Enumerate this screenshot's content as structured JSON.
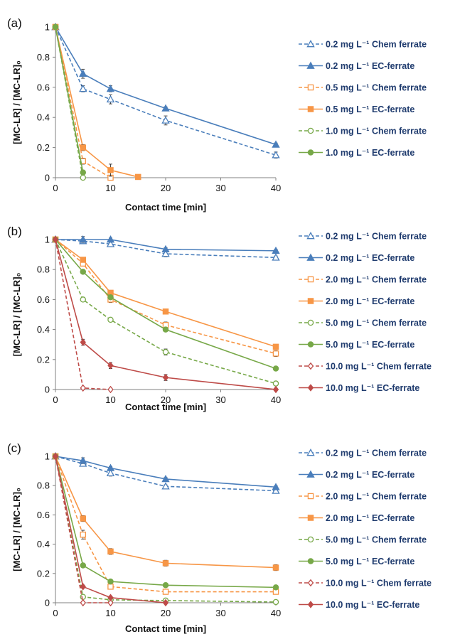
{
  "colors": {
    "blue": "#4a7ebb",
    "orange": "#f79646",
    "green": "#77a848",
    "red": "#be4b48",
    "axis": "#808080",
    "legend_text": "#1f3b6e"
  },
  "chart_data": [
    {
      "panel_label": "(a)",
      "type": "line",
      "xlabel": "Contact time [min]",
      "ylabel": "[MC-LR] / [MC-LR]₀",
      "xlim": [
        0,
        40
      ],
      "ylim": [
        0,
        1
      ],
      "xticks": [
        0,
        10,
        20,
        30,
        40
      ],
      "yticks": [
        0,
        0.2,
        0.4,
        0.6,
        0.8,
        1
      ],
      "ytick_labels": [
        "0",
        "0.2",
        "0.4",
        "0.6",
        "0.8",
        "1"
      ],
      "grid": false,
      "legend_position": "right",
      "series": [
        {
          "name": "0.2 mg L⁻¹ Chem ferrate",
          "color_key": "blue",
          "dash": true,
          "marker": "triangle-open",
          "x": [
            0,
            5,
            10,
            20,
            40
          ],
          "y": [
            1.0,
            0.59,
            0.52,
            0.38,
            0.15
          ],
          "err": [
            0,
            0.02,
            0.03,
            0.03,
            0.02
          ]
        },
        {
          "name": "0.2 mg L⁻¹ EC-ferrate",
          "color_key": "blue",
          "dash": false,
          "marker": "triangle-filled",
          "x": [
            0,
            5,
            10,
            20,
            40
          ],
          "y": [
            1.0,
            0.69,
            0.59,
            0.46,
            0.22
          ],
          "err": [
            0,
            0.03,
            0.02,
            0.01,
            0.01
          ]
        },
        {
          "name": "0.5 mg L⁻¹ Chem ferrate",
          "color_key": "orange",
          "dash": true,
          "marker": "square-open",
          "x": [
            0,
            5,
            10
          ],
          "y": [
            1.0,
            0.11,
            0.0
          ],
          "err": [
            0,
            0.02,
            0
          ]
        },
        {
          "name": "0.5 mg L⁻¹ EC-ferrate",
          "color_key": "orange",
          "dash": false,
          "marker": "square-filled",
          "x": [
            0,
            5,
            10,
            15
          ],
          "y": [
            1.0,
            0.2,
            0.05,
            0.005
          ],
          "err": [
            0,
            0.02,
            0.04,
            0
          ]
        },
        {
          "name": "1.0 mg L⁻¹ Chem ferrate",
          "color_key": "green",
          "dash": true,
          "marker": "circle-open",
          "x": [
            0,
            5
          ],
          "y": [
            1.0,
            0.0
          ],
          "err": [
            0,
            0
          ]
        },
        {
          "name": "1.0 mg L⁻¹ EC-ferrate",
          "color_key": "green",
          "dash": false,
          "marker": "circle-filled",
          "x": [
            0,
            5
          ],
          "y": [
            1.0,
            0.035
          ],
          "err": [
            0,
            0.01
          ]
        }
      ]
    },
    {
      "panel_label": "(b)",
      "type": "line",
      "xlabel": "Contact time [min]",
      "ylabel": "[MC-LR] / [MC-LR]₀",
      "xlim": [
        0,
        40
      ],
      "ylim": [
        0,
        1
      ],
      "xticks": [
        0,
        10,
        20,
        30,
        40
      ],
      "yticks": [
        0,
        0.2,
        0.4,
        0.6,
        0.8,
        1
      ],
      "ytick_labels": [
        "0",
        "0.2",
        "0.4",
        "0.6",
        "0.8",
        "1"
      ],
      "grid": false,
      "legend_position": "right",
      "series": [
        {
          "name": "0.2 mg L⁻¹ Chem ferrate",
          "color_key": "blue",
          "dash": true,
          "marker": "triangle-open",
          "x": [
            0,
            5,
            10,
            20,
            40
          ],
          "y": [
            1.0,
            0.99,
            0.97,
            0.905,
            0.88
          ],
          "err": [
            0,
            0.01,
            0.01,
            0.02,
            0.01
          ]
        },
        {
          "name": "0.2 mg L⁻¹ EC-ferrate",
          "color_key": "blue",
          "dash": false,
          "marker": "triangle-filled",
          "x": [
            0,
            5,
            10,
            20,
            40
          ],
          "y": [
            1.0,
            1.0,
            1.0,
            0.935,
            0.925
          ],
          "err": [
            0,
            0.02,
            0.01,
            0.01,
            0.01
          ]
        },
        {
          "name": "2.0 mg L⁻¹ Chem ferrate",
          "color_key": "orange",
          "dash": true,
          "marker": "square-open",
          "x": [
            0,
            5,
            10,
            20,
            40
          ],
          "y": [
            1.0,
            0.84,
            0.6,
            0.43,
            0.24
          ],
          "err": [
            0,
            0.01,
            0.02,
            0.02,
            0.02
          ]
        },
        {
          "name": "2.0 mg L⁻¹ EC-ferrate",
          "color_key": "orange",
          "dash": false,
          "marker": "square-filled",
          "x": [
            0,
            5,
            10,
            20,
            40
          ],
          "y": [
            1.0,
            0.865,
            0.645,
            0.52,
            0.285
          ],
          "err": [
            0,
            0.01,
            0.01,
            0.01,
            0.01
          ]
        },
        {
          "name": "5.0 mg L⁻¹ Chem ferrate",
          "color_key": "green",
          "dash": true,
          "marker": "circle-open",
          "x": [
            0,
            5,
            10,
            20,
            40
          ],
          "y": [
            1.0,
            0.6,
            0.465,
            0.25,
            0.04
          ],
          "err": [
            0,
            0.01,
            0.01,
            0.02,
            0.01
          ]
        },
        {
          "name": "5.0 mg L⁻¹ EC-ferrate",
          "color_key": "green",
          "dash": false,
          "marker": "circle-filled",
          "x": [
            0,
            5,
            10,
            20,
            40
          ],
          "y": [
            1.0,
            0.785,
            0.615,
            0.4,
            0.14
          ],
          "err": [
            0,
            0.01,
            0.01,
            0.01,
            0.01
          ]
        },
        {
          "name": "10.0 mg L⁻¹ Chem ferrate",
          "color_key": "red",
          "dash": true,
          "marker": "diamond-open",
          "x": [
            0,
            5,
            10
          ],
          "y": [
            1.0,
            0.01,
            0.0
          ],
          "err": [
            0,
            0,
            0
          ]
        },
        {
          "name": "10.0 mg L⁻¹ EC-ferrate",
          "color_key": "red",
          "dash": false,
          "marker": "diamond-filled",
          "x": [
            0,
            5,
            10,
            20,
            40
          ],
          "y": [
            1.0,
            0.315,
            0.16,
            0.08,
            0.0
          ],
          "err": [
            0,
            0.02,
            0.02,
            0.02,
            0
          ]
        }
      ]
    },
    {
      "panel_label": "(c)",
      "type": "line",
      "xlabel": "Contact time [min]",
      "ylabel": "[MC-LR] / [MC-LR]₀",
      "xlim": [
        0,
        40
      ],
      "ylim": [
        0,
        1
      ],
      "xticks": [
        0,
        10,
        20,
        30,
        40
      ],
      "yticks": [
        0,
        0.2,
        0.4,
        0.6,
        0.8,
        1
      ],
      "ytick_labels": [
        "0",
        "0.2",
        "0.4",
        "0.6",
        "0.8",
        "1"
      ],
      "grid": false,
      "legend_position": "right",
      "series": [
        {
          "name": "0.2 mg L⁻¹ Chem ferrate",
          "color_key": "blue",
          "dash": true,
          "marker": "triangle-open",
          "x": [
            0,
            5,
            10,
            20,
            40
          ],
          "y": [
            1.0,
            0.95,
            0.885,
            0.795,
            0.765
          ],
          "err": [
            0,
            0.01,
            0.02,
            0.01,
            0.01
          ]
        },
        {
          "name": "0.2 mg L⁻¹ EC-ferrate",
          "color_key": "blue",
          "dash": false,
          "marker": "triangle-filled",
          "x": [
            0,
            5,
            10,
            20,
            40
          ],
          "y": [
            1.0,
            0.97,
            0.92,
            0.845,
            0.79
          ],
          "err": [
            0,
            0.02,
            0.01,
            0.01,
            0.01
          ]
        },
        {
          "name": "2.0 mg L⁻¹ Chem ferrate",
          "color_key": "orange",
          "dash": true,
          "marker": "square-open",
          "x": [
            0,
            5,
            10,
            20,
            40
          ],
          "y": [
            1.0,
            0.465,
            0.11,
            0.075,
            0.075
          ],
          "err": [
            0,
            0.03,
            0.01,
            0.01,
            0.01
          ]
        },
        {
          "name": "2.0 mg L⁻¹ EC-ferrate",
          "color_key": "orange",
          "dash": false,
          "marker": "square-filled",
          "x": [
            0,
            5,
            10,
            20,
            40
          ],
          "y": [
            1.0,
            0.575,
            0.35,
            0.27,
            0.24
          ],
          "err": [
            0,
            0.02,
            0.02,
            0.02,
            0.02
          ]
        },
        {
          "name": "5.0 mg L⁻¹ Chem ferrate",
          "color_key": "green",
          "dash": true,
          "marker": "circle-open",
          "x": [
            0,
            5,
            10,
            20,
            40
          ],
          "y": [
            1.0,
            0.04,
            0.02,
            0.015,
            0.005
          ],
          "err": [
            0,
            0,
            0,
            0,
            0
          ]
        },
        {
          "name": "5.0 mg L⁻¹ EC-ferrate",
          "color_key": "green",
          "dash": false,
          "marker": "circle-filled",
          "x": [
            0,
            5,
            10,
            20,
            40
          ],
          "y": [
            1.0,
            0.255,
            0.145,
            0.12,
            0.105
          ],
          "err": [
            0,
            0.01,
            0.01,
            0.01,
            0.01
          ]
        },
        {
          "name": "10.0 mg L⁻¹ Chem ferrate",
          "color_key": "red",
          "dash": true,
          "marker": "diamond-open",
          "x": [
            0,
            5,
            10
          ],
          "y": [
            1.0,
            0.0,
            0.0
          ],
          "err": [
            0,
            0,
            0
          ]
        },
        {
          "name": "10.0 mg L⁻¹ EC-ferrate",
          "color_key": "red",
          "dash": false,
          "marker": "diamond-filled",
          "x": [
            0,
            5,
            10,
            20
          ],
          "y": [
            1.0,
            0.11,
            0.035,
            0.0
          ],
          "err": [
            0,
            0.01,
            0.01,
            0
          ]
        }
      ]
    }
  ]
}
